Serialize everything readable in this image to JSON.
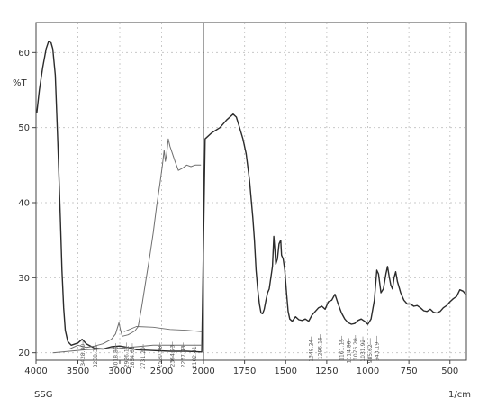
{
  "chart_data": {
    "type": "line",
    "title": "",
    "ylabel": "%T",
    "xlabel": "1/cm",
    "sample_label": "SSG",
    "xlim": [
      4000,
      400
    ],
    "ylim": [
      19,
      64
    ],
    "axis_break_at": 2000,
    "x_ticks": [
      4000,
      3500,
      3000,
      2500,
      2000,
      1750,
      1500,
      1250,
      1000,
      750,
      500
    ],
    "y_ticks": [
      20,
      30,
      40,
      50,
      60
    ],
    "grid": true,
    "colors": {
      "main": "#2b2b2b",
      "overlay": "#6e6e6e",
      "grid": "#c8c8c8",
      "frame": "#444444"
    },
    "series": [
      {
        "values": [
          [
            3990,
            52
          ],
          [
            3960,
            55
          ],
          [
            3920,
            58
          ],
          [
            3880,
            60.5
          ],
          [
            3850,
            61.5
          ],
          [
            3820,
            61.3
          ],
          [
            3800,
            60.5
          ],
          [
            3770,
            57
          ],
          [
            3740,
            48
          ],
          [
            3710,
            38
          ],
          [
            3690,
            31
          ],
          [
            3670,
            26
          ],
          [
            3650,
            23
          ],
          [
            3620,
            21.5
          ],
          [
            3580,
            21
          ],
          [
            3500,
            21.3
          ],
          [
            3450,
            21.8
          ],
          [
            3400,
            21.2
          ],
          [
            3300,
            20.6
          ],
          [
            3200,
            20.5
          ],
          [
            3100,
            20.8
          ],
          [
            3000,
            20.9
          ],
          [
            2900,
            20.7
          ],
          [
            2800,
            20.4
          ],
          [
            2600,
            20.3
          ],
          [
            2400,
            20.2
          ],
          [
            2200,
            20.2
          ],
          [
            2020,
            20.1
          ],
          [
            1990,
            48.5
          ],
          [
            1950,
            49.3
          ],
          [
            1900,
            50
          ],
          [
            1860,
            51
          ],
          [
            1820,
            51.8
          ],
          [
            1800,
            51.4
          ],
          [
            1780,
            50
          ],
          [
            1760,
            48.5
          ],
          [
            1740,
            46.5
          ],
          [
            1720,
            43
          ],
          [
            1700,
            38
          ],
          [
            1690,
            35
          ],
          [
            1680,
            31
          ],
          [
            1670,
            28.5
          ],
          [
            1660,
            26.5
          ],
          [
            1650,
            25.3
          ],
          [
            1640,
            25.2
          ],
          [
            1630,
            25.8
          ],
          [
            1620,
            27
          ],
          [
            1610,
            28
          ],
          [
            1600,
            28.5
          ],
          [
            1590,
            30
          ],
          [
            1580,
            31.5
          ],
          [
            1572,
            35.5
          ],
          [
            1565,
            33.5
          ],
          [
            1560,
            31.8
          ],
          [
            1550,
            32.5
          ],
          [
            1540,
            34.5
          ],
          [
            1530,
            35
          ],
          [
            1525,
            33
          ],
          [
            1515,
            32.5
          ],
          [
            1505,
            31
          ],
          [
            1495,
            28
          ],
          [
            1485,
            25.5
          ],
          [
            1475,
            24.5
          ],
          [
            1460,
            24.2
          ],
          [
            1440,
            24.8
          ],
          [
            1420,
            24.4
          ],
          [
            1400,
            24.3
          ],
          [
            1380,
            24.5
          ],
          [
            1360,
            24.2
          ],
          [
            1340,
            25
          ],
          [
            1320,
            25.5
          ],
          [
            1300,
            26
          ],
          [
            1280,
            26.2
          ],
          [
            1260,
            25.8
          ],
          [
            1240,
            26.8
          ],
          [
            1220,
            27
          ],
          [
            1200,
            27.8
          ],
          [
            1180,
            26.5
          ],
          [
            1160,
            25.3
          ],
          [
            1140,
            24.5
          ],
          [
            1120,
            24
          ],
          [
            1100,
            23.8
          ],
          [
            1080,
            23.9
          ],
          [
            1060,
            24.3
          ],
          [
            1040,
            24.5
          ],
          [
            1020,
            24.2
          ],
          [
            1000,
            23.8
          ],
          [
            980,
            24.5
          ],
          [
            960,
            27
          ],
          [
            945,
            31
          ],
          [
            935,
            30.5
          ],
          [
            920,
            28
          ],
          [
            905,
            28.5
          ],
          [
            890,
            30.5
          ],
          [
            880,
            31.5
          ],
          [
            870,
            30.2
          ],
          [
            860,
            29
          ],
          [
            850,
            28.5
          ],
          [
            840,
            30
          ],
          [
            830,
            30.8
          ],
          [
            820,
            29.5
          ],
          [
            800,
            28
          ],
          [
            780,
            27
          ],
          [
            760,
            26.5
          ],
          [
            740,
            26.5
          ],
          [
            720,
            26.2
          ],
          [
            700,
            26.3
          ],
          [
            680,
            26
          ],
          [
            660,
            25.6
          ],
          [
            640,
            25.5
          ],
          [
            620,
            25.8
          ],
          [
            600,
            25.4
          ],
          [
            580,
            25.3
          ],
          [
            560,
            25.5
          ],
          [
            540,
            26
          ],
          [
            520,
            26.3
          ],
          [
            500,
            26.8
          ],
          [
            480,
            27.2
          ],
          [
            460,
            27.5
          ],
          [
            440,
            28.4
          ],
          [
            420,
            28.2
          ],
          [
            405,
            27.8
          ]
        ]
      },
      {
        "values": [
          [
            3600,
            20.5
          ],
          [
            3500,
            21
          ],
          [
            3400,
            20.7
          ],
          [
            3300,
            20.9
          ],
          [
            3200,
            21.2
          ],
          [
            3100,
            21.8
          ],
          [
            3050,
            22.5
          ],
          [
            3010,
            24
          ],
          [
            2990,
            23
          ],
          [
            2970,
            22.2
          ],
          [
            2900,
            22.4
          ],
          [
            2820,
            22.9
          ],
          [
            2780,
            23.5
          ],
          [
            2740,
            26
          ],
          [
            2690,
            29.5
          ],
          [
            2640,
            33
          ],
          [
            2600,
            36
          ],
          [
            2560,
            39.5
          ],
          [
            2520,
            42.5
          ],
          [
            2490,
            45
          ],
          [
            2470,
            47
          ],
          [
            2455,
            45.5
          ],
          [
            2440,
            46.5
          ],
          [
            2420,
            48.5
          ],
          [
            2400,
            47.5
          ],
          [
            2370,
            46.5
          ],
          [
            2340,
            45.5
          ],
          [
            2300,
            44.3
          ],
          [
            2250,
            44.6
          ],
          [
            2200,
            45
          ],
          [
            2150,
            44.8
          ],
          [
            2100,
            45
          ],
          [
            2030,
            45
          ]
        ]
      },
      {
        "values": [
          [
            3800,
            20
          ],
          [
            3600,
            20.2
          ],
          [
            3400,
            20.4
          ],
          [
            3200,
            20.5
          ],
          [
            3000,
            20.6
          ],
          [
            2800,
            20.8
          ],
          [
            2600,
            21
          ],
          [
            2400,
            21
          ],
          [
            2200,
            21
          ],
          [
            2020,
            21
          ]
        ]
      },
      {
        "values": [
          [
            2950,
            22.8
          ],
          [
            2800,
            23.5
          ],
          [
            2600,
            23.4
          ],
          [
            2400,
            23.1
          ],
          [
            2200,
            23.0
          ],
          [
            2020,
            22.8
          ]
        ]
      }
    ],
    "peak_labels": [
      {
        "x": 3440,
        "y": 20.6,
        "text": "3428.80"
      },
      {
        "x": 3290,
        "y": 20.4,
        "text": "3288.36"
      },
      {
        "x": 3050,
        "y": 20.3,
        "text": "3018.80"
      },
      {
        "x": 2920,
        "y": 20.4,
        "text": "2926.11"
      },
      {
        "x": 2850,
        "y": 20.3,
        "text": "2854.65"
      },
      {
        "x": 2720,
        "y": 20.2,
        "text": "2731.20"
      },
      {
        "x": 2520,
        "y": 20.4,
        "text": "2520.98"
      },
      {
        "x": 2370,
        "y": 20.5,
        "text": "2364.73"
      },
      {
        "x": 2240,
        "y": 20.4,
        "text": "2237.43"
      },
      {
        "x": 2110,
        "y": 20.3,
        "text": "2102.41"
      },
      {
        "x": 1345,
        "y": 21.2,
        "text": "1348.24"
      },
      {
        "x": 1290,
        "y": 21.5,
        "text": "1296.16"
      },
      {
        "x": 1160,
        "y": 21.3,
        "text": "1161.15"
      },
      {
        "x": 1115,
        "y": 21.0,
        "text": "1114.86"
      },
      {
        "x": 1075,
        "y": 21.4,
        "text": "1076.28"
      },
      {
        "x": 1030,
        "y": 21.2,
        "text": "1031.92"
      },
      {
        "x": 985,
        "y": 21.0,
        "text": "985.62"
      },
      {
        "x": 945,
        "y": 21.3,
        "text": "943.19"
      }
    ]
  }
}
